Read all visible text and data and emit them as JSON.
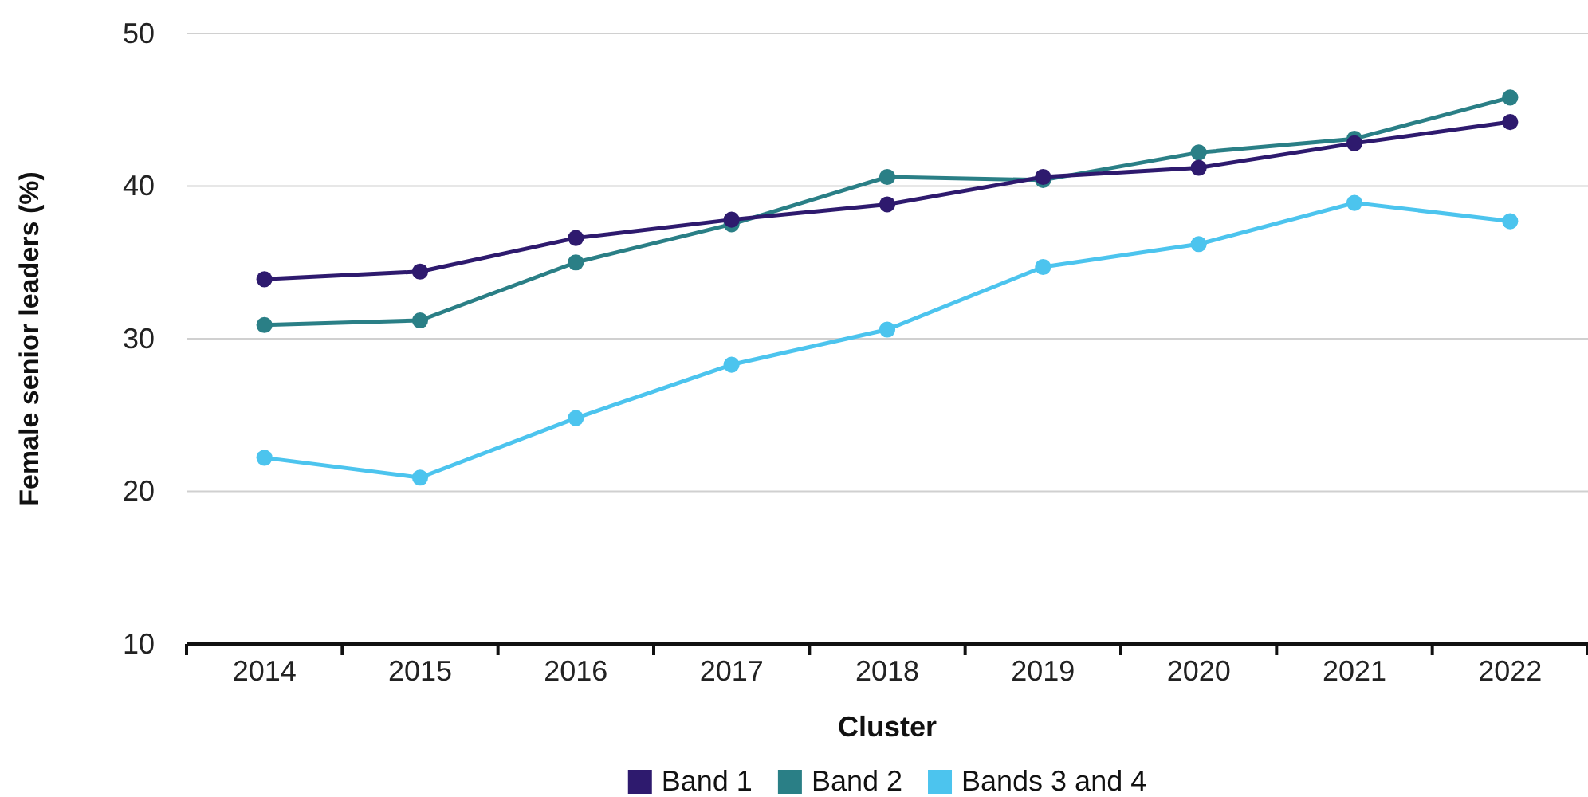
{
  "chart_data": {
    "type": "line",
    "xlabel": "Cluster",
    "ylabel": "Female senior leaders (%)",
    "categories": [
      "2014",
      "2015",
      "2016",
      "2017",
      "2018",
      "2019",
      "2020",
      "2021",
      "2022"
    ],
    "series": [
      {
        "name": "Band 1",
        "color": "#2e1a6e",
        "values": [
          33.9,
          34.4,
          36.6,
          37.8,
          38.8,
          40.6,
          41.2,
          42.8,
          44.2
        ]
      },
      {
        "name": "Band 2",
        "color": "#2a7f86",
        "values": [
          30.9,
          31.2,
          35.0,
          37.5,
          40.6,
          40.4,
          42.2,
          43.1,
          45.8
        ]
      },
      {
        "name": "Bands 3 and 4",
        "color": "#4cc4ee",
        "values": [
          22.2,
          20.9,
          24.8,
          28.3,
          30.6,
          34.7,
          36.2,
          38.9,
          37.7
        ]
      }
    ],
    "ylim": [
      10,
      50
    ],
    "yticks": [
      10,
      20,
      30,
      40,
      50
    ],
    "grid": "y",
    "legend": "bottom",
    "marker": "circle",
    "line_style": "solid"
  }
}
